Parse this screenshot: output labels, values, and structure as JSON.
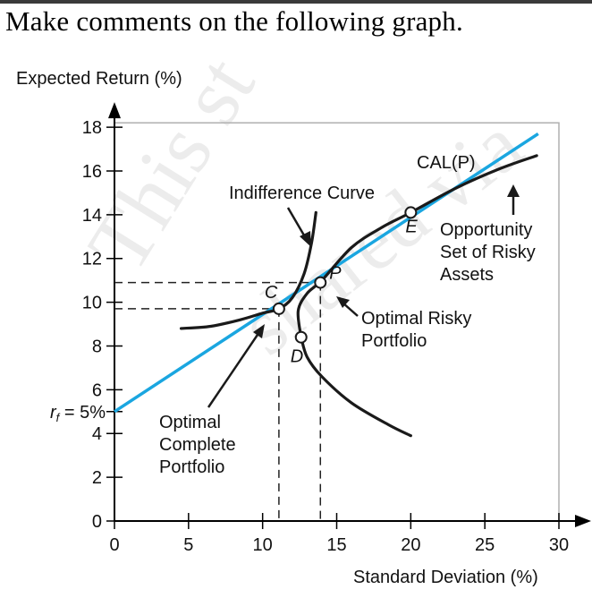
{
  "question": "Make comments on the following graph.",
  "watermark": {
    "words": [
      "This st",
      "shared via"
    ],
    "color": "#9e9e9e"
  },
  "colors": {
    "cal_line": "#1aa6e0",
    "curves": "#1a1a1a",
    "frame": "#b0b0b0",
    "axis": "#000000",
    "guides": "#222222"
  },
  "chart_data": {
    "type": "line",
    "title": "",
    "xlabel": "Standard Deviation (%)",
    "ylabel": "Expected Return (%)",
    "xlim": [
      0,
      30
    ],
    "ylim": [
      0,
      18
    ],
    "x_ticks": [
      0,
      5,
      10,
      15,
      20,
      25,
      30
    ],
    "y_ticks": [
      0,
      2,
      4,
      6,
      8,
      10,
      12,
      14,
      16,
      18
    ],
    "rf_tick": {
      "label": "r",
      "sub": "f",
      "rest": " = 5%",
      "value": 5
    },
    "series": [
      {
        "name": "CAL(P)",
        "key": "cal",
        "values": [
          [
            0,
            5
          ],
          [
            28.6,
            17.7
          ]
        ]
      },
      {
        "name": "Opportunity Set of Risky Assets",
        "key": "opp_upper",
        "values": [
          [
            12.6,
            8.4
          ],
          [
            12.4,
            9.6
          ],
          [
            13.0,
            10.4
          ],
          [
            14.0,
            11.0
          ],
          [
            16.0,
            12.5
          ],
          [
            18.0,
            13.4
          ],
          [
            20.0,
            14.1
          ],
          [
            23.0,
            15.2
          ],
          [
            26.0,
            16.1
          ],
          [
            28.5,
            16.7
          ]
        ]
      },
      {
        "name": "",
        "key": "opp_lower",
        "values": [
          [
            12.6,
            8.4
          ],
          [
            13.0,
            7.5
          ],
          [
            14.0,
            6.6
          ],
          [
            16.0,
            5.4
          ],
          [
            18.5,
            4.4
          ],
          [
            20.0,
            3.9
          ]
        ]
      },
      {
        "name": "Indifference Curve",
        "key": "indiff",
        "values": [
          [
            4.5,
            8.8
          ],
          [
            6.5,
            8.9
          ],
          [
            8.5,
            9.2
          ],
          [
            10.0,
            9.5
          ],
          [
            11.1,
            9.7
          ],
          [
            12.0,
            10.2
          ],
          [
            12.8,
            11.3
          ],
          [
            13.3,
            12.7
          ],
          [
            13.6,
            14.1
          ]
        ]
      }
    ],
    "points": [
      {
        "label": "C",
        "x": 11.1,
        "y": 9.7
      },
      {
        "label": "P",
        "x": 13.9,
        "y": 10.9
      },
      {
        "label": "D",
        "x": 12.6,
        "y": 8.4
      },
      {
        "label": "E",
        "x": 20.0,
        "y": 14.1
      }
    ],
    "guides": [
      {
        "x": 13.9,
        "y": 10.9
      },
      {
        "x": 11.1,
        "y": 9.7
      }
    ],
    "annotations": {
      "cal": "CAL(P)",
      "indiff": "Indifference Curve",
      "opp": [
        "Opportunity",
        "Set of Risky",
        "Assets"
      ],
      "orp": [
        "Optimal Risky",
        "Portfolio"
      ],
      "ocp": [
        "Optimal",
        "Complete",
        "Portfolio"
      ]
    },
    "grid": false,
    "legend": "none"
  }
}
